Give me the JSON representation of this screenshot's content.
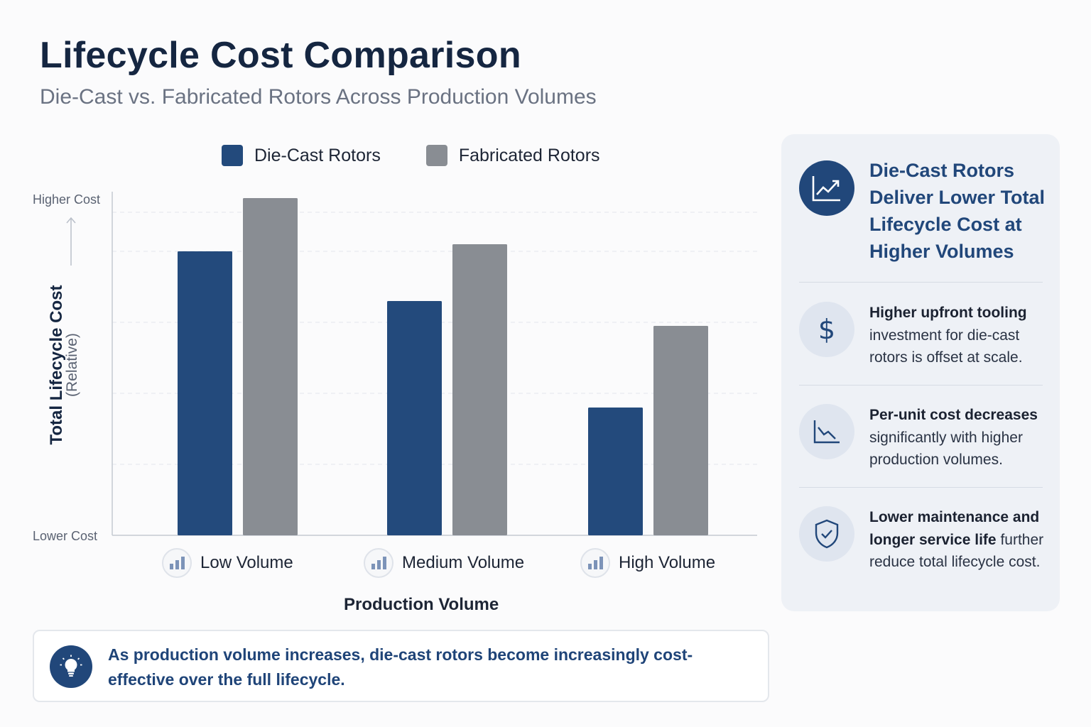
{
  "header": {
    "title": "Lifecycle Cost Comparison",
    "subtitle": "Die-Cast vs. Fabricated Rotors Across Production Volumes"
  },
  "chart_data": {
    "type": "bar",
    "title": "Lifecycle Cost Comparison",
    "subtitle": "Die-Cast vs. Fabricated Rotors Across Production Volumes",
    "categories": [
      "Low Volume",
      "Medium Volume",
      "High Volume"
    ],
    "series": [
      {
        "name": "Die-Cast Rotors",
        "color": "#234a7c",
        "values": [
          0.8,
          0.66,
          0.36
        ]
      },
      {
        "name": "Fabricated Rotors",
        "color": "#898d93",
        "values": [
          0.95,
          0.82,
          0.59
        ]
      }
    ],
    "xlabel": "Production Volume",
    "ylabel": "Total Lifecycle Cost",
    "ylabel_sub": "(Relative)",
    "y_top_label": "Higher Cost",
    "y_bottom_label": "Lower Cost",
    "ylim": [
      0,
      1
    ],
    "grid": true,
    "legend_position": "top"
  },
  "callout": {
    "icon": "lightbulb-icon",
    "text": "As production volume increases, die-cast rotors become increasingly cost-effective over the full lifecycle."
  },
  "panel": {
    "headline": "Die-Cast Rotors Deliver Lower Total Lifecycle Cost at Higher Volumes",
    "headline_icon": "trending-up-icon",
    "points": [
      {
        "icon": "dollar-icon",
        "bold": "Higher upfront tooling",
        "text": "investment for die-cast rotors is offset at scale."
      },
      {
        "icon": "declining-chart-icon",
        "bold": "Per-unit cost decreases",
        "text": "significantly with higher production volumes."
      },
      {
        "icon": "shield-check-icon",
        "bold": "Lower maintenance and longer service life",
        "text": "further reduce total lifecycle cost."
      }
    ]
  }
}
